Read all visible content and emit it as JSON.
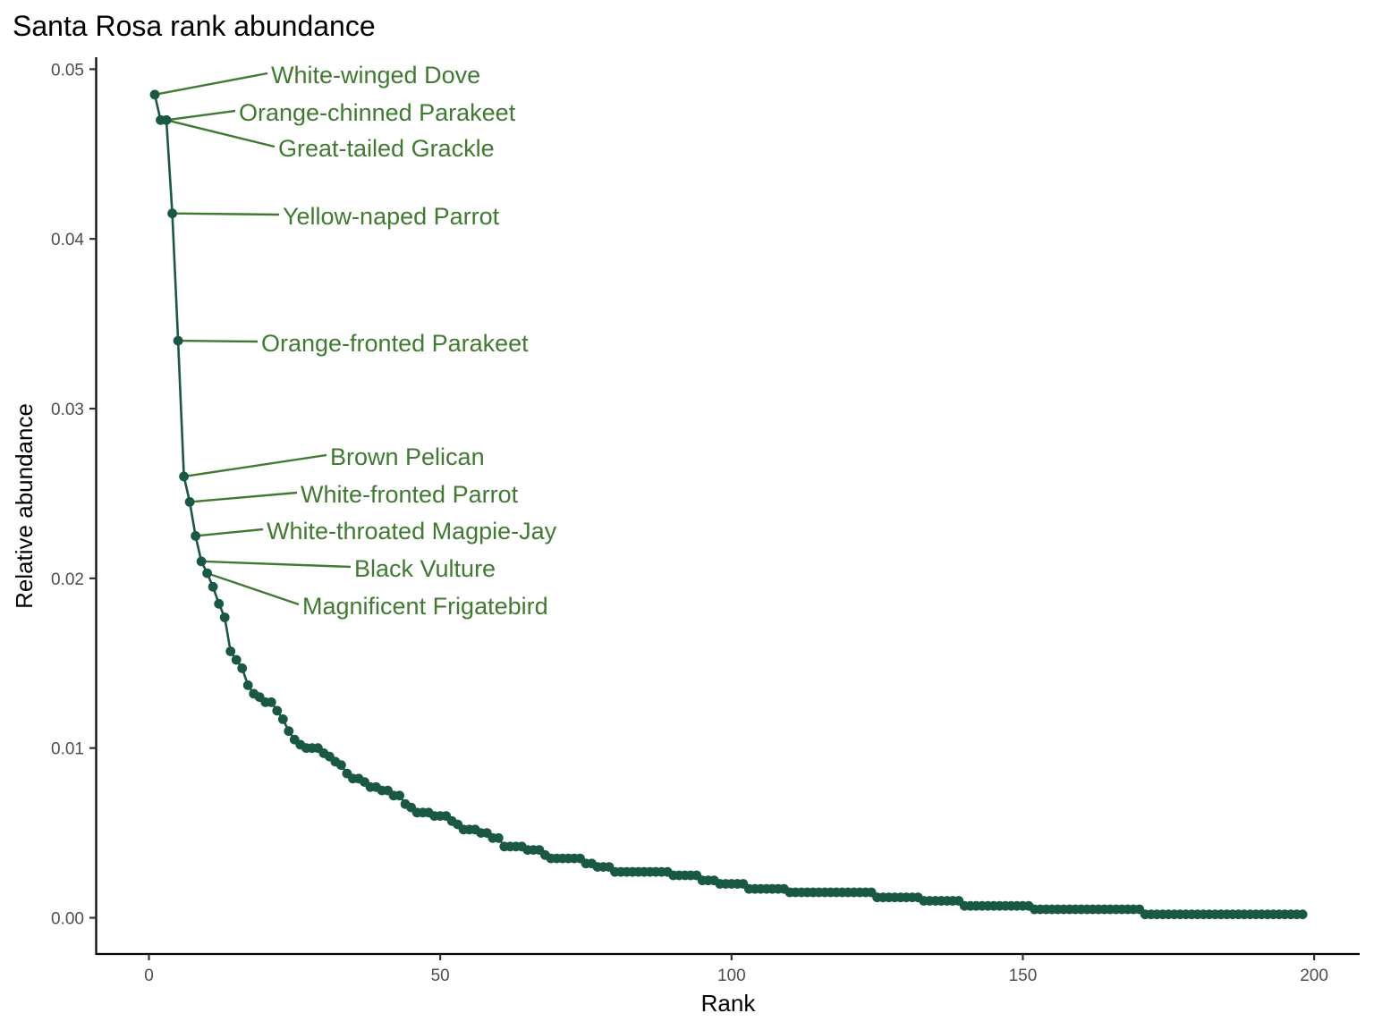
{
  "chart_data": {
    "type": "line",
    "title": "Santa Rosa rank abundance",
    "xlabel": "Rank",
    "ylabel": "Relative abundance",
    "xlim": [
      -9,
      207
    ],
    "ylim": [
      -0.0022,
      0.0512
    ],
    "x_ticks": [
      0,
      50,
      100,
      150,
      200
    ],
    "x_tick_labels": [
      "0",
      "50",
      "100",
      "150",
      "200"
    ],
    "y_ticks": [
      0.0,
      0.01,
      0.02,
      0.03,
      0.04,
      0.05
    ],
    "y_tick_labels": [
      "0.00",
      "0.01",
      "0.02",
      "0.03",
      "0.04",
      "0.05"
    ],
    "grid": false,
    "legend": "none",
    "colors": {
      "series": "#185845",
      "labels": "#3f7a30",
      "axis": "#000000"
    },
    "series": [
      {
        "values": [
          [
            1,
            0.0485
          ],
          [
            2,
            0.047
          ],
          [
            3,
            0.047
          ],
          [
            4,
            0.0415
          ],
          [
            5,
            0.034
          ],
          [
            6,
            0.026
          ],
          [
            7,
            0.0245
          ],
          [
            8,
            0.0225
          ],
          [
            9,
            0.021
          ],
          [
            10,
            0.0203
          ],
          [
            11,
            0.0195
          ],
          [
            12,
            0.0185
          ],
          [
            13,
            0.0177
          ],
          [
            14,
            0.0157
          ],
          [
            15,
            0.0152
          ],
          [
            16,
            0.0147
          ],
          [
            17,
            0.0137
          ],
          [
            18,
            0.0132
          ],
          [
            19,
            0.013
          ],
          [
            20,
            0.0127
          ],
          [
            21,
            0.0127
          ],
          [
            22,
            0.0122
          ],
          [
            23,
            0.0117
          ],
          [
            24,
            0.011
          ],
          [
            25,
            0.0105
          ],
          [
            26,
            0.0102
          ],
          [
            27,
            0.01
          ],
          [
            28,
            0.01
          ],
          [
            29,
            0.01
          ],
          [
            30,
            0.0097
          ],
          [
            31,
            0.0095
          ],
          [
            32,
            0.0092
          ],
          [
            33,
            0.009
          ],
          [
            34,
            0.0085
          ],
          [
            35,
            0.0082
          ],
          [
            36,
            0.0082
          ],
          [
            37,
            0.008
          ],
          [
            38,
            0.0077
          ],
          [
            39,
            0.0077
          ],
          [
            40,
            0.0075
          ],
          [
            41,
            0.0075
          ],
          [
            42,
            0.0072
          ],
          [
            43,
            0.0072
          ],
          [
            44,
            0.0067
          ],
          [
            45,
            0.0065
          ],
          [
            46,
            0.0062
          ],
          [
            47,
            0.0062
          ],
          [
            48,
            0.0062
          ],
          [
            49,
            0.006
          ],
          [
            50,
            0.006
          ],
          [
            51,
            0.006
          ],
          [
            52,
            0.0057
          ],
          [
            53,
            0.0055
          ],
          [
            54,
            0.0052
          ],
          [
            55,
            0.0052
          ],
          [
            56,
            0.0052
          ],
          [
            57,
            0.005
          ],
          [
            58,
            0.005
          ],
          [
            59,
            0.0047
          ],
          [
            60,
            0.0047
          ],
          [
            61,
            0.0042
          ],
          [
            62,
            0.0042
          ],
          [
            63,
            0.0042
          ],
          [
            64,
            0.0042
          ],
          [
            65,
            0.004
          ],
          [
            66,
            0.004
          ],
          [
            67,
            0.004
          ],
          [
            68,
            0.0037
          ],
          [
            69,
            0.0035
          ],
          [
            70,
            0.0035
          ],
          [
            71,
            0.0035
          ],
          [
            72,
            0.0035
          ],
          [
            73,
            0.0035
          ],
          [
            74,
            0.0035
          ],
          [
            75,
            0.0032
          ],
          [
            76,
            0.0032
          ],
          [
            77,
            0.003
          ],
          [
            78,
            0.003
          ],
          [
            79,
            0.003
          ],
          [
            80,
            0.0027
          ],
          [
            81,
            0.0027
          ],
          [
            82,
            0.0027
          ],
          [
            83,
            0.0027
          ],
          [
            84,
            0.0027
          ],
          [
            85,
            0.0027
          ],
          [
            86,
            0.0027
          ],
          [
            87,
            0.0027
          ],
          [
            88,
            0.0027
          ],
          [
            89,
            0.0027
          ],
          [
            90,
            0.0025
          ],
          [
            91,
            0.0025
          ],
          [
            92,
            0.0025
          ],
          [
            93,
            0.0025
          ],
          [
            94,
            0.0025
          ],
          [
            95,
            0.0022
          ],
          [
            96,
            0.0022
          ],
          [
            97,
            0.0022
          ],
          [
            98,
            0.002
          ],
          [
            99,
            0.002
          ],
          [
            100,
            0.002
          ],
          [
            101,
            0.002
          ],
          [
            102,
            0.002
          ],
          [
            103,
            0.0017
          ],
          [
            104,
            0.0017
          ],
          [
            105,
            0.0017
          ],
          [
            106,
            0.0017
          ],
          [
            107,
            0.0017
          ],
          [
            108,
            0.0017
          ],
          [
            109,
            0.0017
          ],
          [
            110,
            0.0015
          ],
          [
            111,
            0.0015
          ],
          [
            112,
            0.0015
          ],
          [
            113,
            0.0015
          ],
          [
            114,
            0.0015
          ],
          [
            115,
            0.0015
          ],
          [
            116,
            0.0015
          ],
          [
            117,
            0.0015
          ],
          [
            118,
            0.0015
          ],
          [
            119,
            0.0015
          ],
          [
            120,
            0.0015
          ],
          [
            121,
            0.0015
          ],
          [
            122,
            0.0015
          ],
          [
            123,
            0.0015
          ],
          [
            124,
            0.0015
          ],
          [
            125,
            0.0012
          ],
          [
            126,
            0.0012
          ],
          [
            127,
            0.0012
          ],
          [
            128,
            0.0012
          ],
          [
            129,
            0.0012
          ],
          [
            130,
            0.0012
          ],
          [
            131,
            0.0012
          ],
          [
            132,
            0.0012
          ],
          [
            133,
            0.001
          ],
          [
            134,
            0.001
          ],
          [
            135,
            0.001
          ],
          [
            136,
            0.001
          ],
          [
            137,
            0.001
          ],
          [
            138,
            0.001
          ],
          [
            139,
            0.001
          ],
          [
            140,
            0.0007
          ],
          [
            141,
            0.0007
          ],
          [
            142,
            0.0007
          ],
          [
            143,
            0.0007
          ],
          [
            144,
            0.0007
          ],
          [
            145,
            0.0007
          ],
          [
            146,
            0.0007
          ],
          [
            147,
            0.0007
          ],
          [
            148,
            0.0007
          ],
          [
            149,
            0.0007
          ],
          [
            150,
            0.0007
          ],
          [
            151,
            0.0007
          ],
          [
            152,
            0.0005
          ],
          [
            153,
            0.0005
          ],
          [
            154,
            0.0005
          ],
          [
            155,
            0.0005
          ],
          [
            156,
            0.0005
          ],
          [
            157,
            0.0005
          ],
          [
            158,
            0.0005
          ],
          [
            159,
            0.0005
          ],
          [
            160,
            0.0005
          ],
          [
            161,
            0.0005
          ],
          [
            162,
            0.0005
          ],
          [
            163,
            0.0005
          ],
          [
            164,
            0.0005
          ],
          [
            165,
            0.0005
          ],
          [
            166,
            0.0005
          ],
          [
            167,
            0.0005
          ],
          [
            168,
            0.0005
          ],
          [
            169,
            0.0005
          ],
          [
            170,
            0.0005
          ],
          [
            171,
            0.0002
          ],
          [
            172,
            0.0002
          ],
          [
            173,
            0.0002
          ],
          [
            174,
            0.0002
          ],
          [
            175,
            0.0002
          ],
          [
            176,
            0.0002
          ],
          [
            177,
            0.0002
          ],
          [
            178,
            0.0002
          ],
          [
            179,
            0.0002
          ],
          [
            180,
            0.0002
          ],
          [
            181,
            0.0002
          ],
          [
            182,
            0.0002
          ],
          [
            183,
            0.0002
          ],
          [
            184,
            0.0002
          ],
          [
            185,
            0.0002
          ],
          [
            186,
            0.0002
          ],
          [
            187,
            0.0002
          ],
          [
            188,
            0.0002
          ],
          [
            189,
            0.0002
          ],
          [
            190,
            0.0002
          ],
          [
            191,
            0.0002
          ],
          [
            192,
            0.0002
          ],
          [
            193,
            0.0002
          ],
          [
            194,
            0.0002
          ],
          [
            195,
            0.0002
          ],
          [
            196,
            0.0002
          ],
          [
            197,
            0.0002
          ],
          [
            198,
            0.0002
          ]
        ]
      }
    ],
    "annotations": [
      {
        "text": "White-winged Dove",
        "rank": 1
      },
      {
        "text": "Orange-chinned Parakeet",
        "rank": 3
      },
      {
        "text": "Great-tailed Grackle",
        "rank": 3
      },
      {
        "text": "Yellow-naped Parrot",
        "rank": 4
      },
      {
        "text": "Orange-fronted Parakeet",
        "rank": 5
      },
      {
        "text": "Brown Pelican",
        "rank": 6
      },
      {
        "text": "White-fronted Parrot",
        "rank": 7
      },
      {
        "text": "White-throated Magpie-Jay",
        "rank": 8
      },
      {
        "text": "Black Vulture",
        "rank": 9
      },
      {
        "text": "Magnificent Frigatebird",
        "rank": 10
      }
    ]
  }
}
